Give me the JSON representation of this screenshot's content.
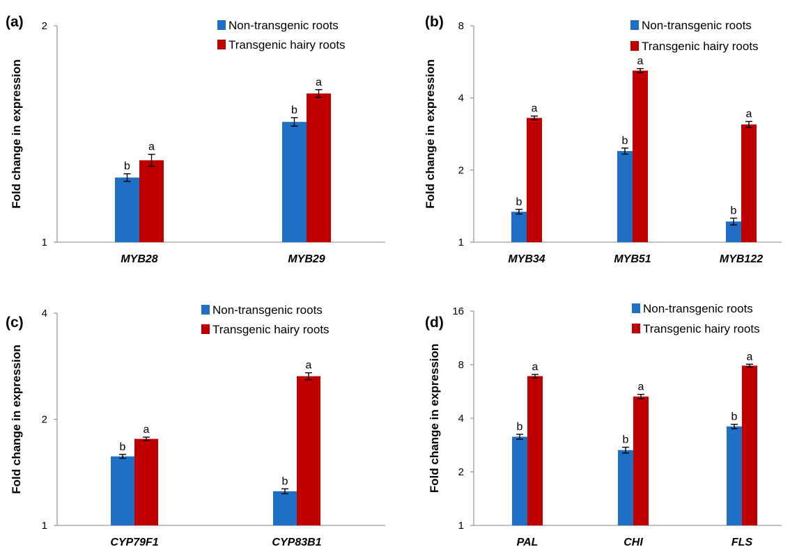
{
  "chart_data": [
    {
      "panel": "(a)",
      "type": "bar",
      "ylabel": "Fold  change in expression",
      "yscale": "log2",
      "ylim": [
        1,
        2
      ],
      "yticks": [
        "1",
        "2"
      ],
      "categories": [
        "MYB28",
        "MYB29"
      ],
      "legend": {
        "placement": "top-right"
      },
      "series": [
        {
          "name": "Non-transgenic roots",
          "color": "#1f6fc5",
          "values": [
            1.23,
            1.47
          ],
          "errors": [
            0.015,
            0.02
          ],
          "labels": [
            "b",
            "b"
          ]
        },
        {
          "name": "Transgenic hairy roots",
          "color": "#c00000",
          "values": [
            1.3,
            1.61
          ],
          "errors": [
            0.025,
            0.02
          ],
          "labels": [
            "a",
            "a"
          ]
        }
      ]
    },
    {
      "panel": "(b)",
      "type": "bar",
      "ylabel": "Fold change in expression",
      "yscale": "log2",
      "ylim": [
        1,
        8
      ],
      "yticks": [
        "1",
        "2",
        "4",
        "8"
      ],
      "categories": [
        "MYB34",
        "MYB51",
        "MYB122"
      ],
      "legend": {
        "placement": "top-right"
      },
      "series": [
        {
          "name": "Non-transgenic roots",
          "color": "#1f6fc5",
          "values": [
            1.34,
            2.4,
            1.22
          ],
          "errors": [
            0.03,
            0.07,
            0.04
          ],
          "labels": [
            "b",
            "b",
            "b"
          ]
        },
        {
          "name": "Transgenic hairy roots",
          "color": "#c00000",
          "values": [
            3.3,
            5.2,
            3.1
          ],
          "errors": [
            0.06,
            0.1,
            0.09
          ],
          "labels": [
            "a",
            "a",
            "a"
          ]
        }
      ]
    },
    {
      "panel": "(c)",
      "type": "bar",
      "ylabel": "Fold change in expression",
      "yscale": "log2",
      "ylim": [
        1,
        4
      ],
      "yticks": [
        "1",
        "2",
        "4"
      ],
      "categories": [
        "CYP79F1",
        "CYP83B1"
      ],
      "legend": {
        "placement": "top-right"
      },
      "series": [
        {
          "name": "Non-transgenic roots",
          "color": "#1f6fc5",
          "values": [
            1.57,
            1.25
          ],
          "errors": [
            0.02,
            0.02
          ],
          "labels": [
            "b",
            "b"
          ]
        },
        {
          "name": "Transgenic hairy roots",
          "color": "#c00000",
          "values": [
            1.76,
            2.65
          ],
          "errors": [
            0.02,
            0.06
          ],
          "labels": [
            "a",
            "a"
          ]
        }
      ]
    },
    {
      "panel": "(d)",
      "type": "bar",
      "ylabel": "Fold change in expression",
      "yscale": "log2",
      "ylim": [
        1,
        16
      ],
      "yticks": [
        "1",
        "2",
        "4",
        "8",
        "16"
      ],
      "categories": [
        "PAL",
        "CHI",
        "FLS"
      ],
      "legend": {
        "placement": "top-right"
      },
      "series": [
        {
          "name": "Non-transgenic roots",
          "color": "#1f6fc5",
          "values": [
            3.15,
            2.65,
            3.6
          ],
          "errors": [
            0.1,
            0.1,
            0.1
          ],
          "labels": [
            "b",
            "b",
            "b"
          ]
        },
        {
          "name": "Transgenic hairy roots",
          "color": "#c00000",
          "values": [
            6.9,
            5.3,
            7.9
          ],
          "errors": [
            0.15,
            0.15,
            0.15
          ],
          "labels": [
            "a",
            "a",
            "a"
          ]
        }
      ]
    }
  ]
}
